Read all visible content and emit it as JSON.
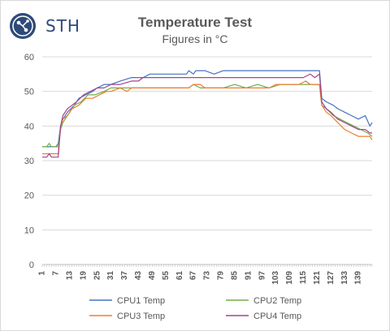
{
  "brand": {
    "logo_text": "STH"
  },
  "chart_data": {
    "type": "line",
    "title": "Temperature Test",
    "subtitle": "Figures in °C",
    "xlabel": "",
    "ylabel": "",
    "ylim": [
      0,
      60
    ],
    "yticks": [
      0,
      10,
      20,
      30,
      40,
      50,
      60
    ],
    "x_tick_labels": [
      1,
      7,
      13,
      19,
      25,
      31,
      37,
      43,
      49,
      55,
      61,
      67,
      73,
      79,
      85,
      91,
      97,
      103,
      109,
      115,
      121,
      127,
      133,
      139
    ],
    "x_range": [
      1,
      145
    ],
    "grid": "horizontal",
    "legend_position": "bottom",
    "series": [
      {
        "name": "CPU1 Temp",
        "color": "#4472c4",
        "points": [
          [
            1,
            34
          ],
          [
            5,
            34
          ],
          [
            6,
            34
          ],
          [
            7,
            34
          ],
          [
            8,
            35
          ],
          [
            9,
            40
          ],
          [
            10,
            42
          ],
          [
            12,
            44
          ],
          [
            15,
            46
          ],
          [
            17,
            48
          ],
          [
            20,
            49
          ],
          [
            23,
            50
          ],
          [
            25,
            51
          ],
          [
            28,
            52
          ],
          [
            31,
            52
          ],
          [
            35,
            53
          ],
          [
            40,
            54
          ],
          [
            45,
            54
          ],
          [
            48,
            55
          ],
          [
            55,
            55
          ],
          [
            60,
            55
          ],
          [
            64,
            55
          ],
          [
            65,
            56
          ],
          [
            67,
            55
          ],
          [
            68,
            56
          ],
          [
            72,
            56
          ],
          [
            76,
            55
          ],
          [
            80,
            56
          ],
          [
            85,
            56
          ],
          [
            90,
            56
          ],
          [
            95,
            56
          ],
          [
            100,
            56
          ],
          [
            105,
            56
          ],
          [
            110,
            56
          ],
          [
            115,
            56
          ],
          [
            118,
            56
          ],
          [
            120,
            56
          ],
          [
            122,
            56
          ],
          [
            123,
            48
          ],
          [
            125,
            47
          ],
          [
            128,
            46
          ],
          [
            130,
            45
          ],
          [
            133,
            44
          ],
          [
            136,
            43
          ],
          [
            139,
            42
          ],
          [
            142,
            43
          ],
          [
            144,
            40
          ],
          [
            145,
            41
          ]
        ]
      },
      {
        "name": "CPU2 Temp",
        "color": "#70ad47",
        "points": [
          [
            1,
            34
          ],
          [
            3,
            34
          ],
          [
            4,
            35
          ],
          [
            5,
            34
          ],
          [
            7,
            34
          ],
          [
            8,
            34
          ],
          [
            9,
            39
          ],
          [
            10,
            41
          ],
          [
            12,
            43
          ],
          [
            15,
            46
          ],
          [
            18,
            47
          ],
          [
            21,
            49
          ],
          [
            24,
            49
          ],
          [
            28,
            50
          ],
          [
            31,
            51
          ],
          [
            35,
            51
          ],
          [
            40,
            51
          ],
          [
            45,
            51
          ],
          [
            50,
            51
          ],
          [
            55,
            51
          ],
          [
            60,
            51
          ],
          [
            65,
            51
          ],
          [
            67,
            52
          ],
          [
            70,
            51
          ],
          [
            75,
            51
          ],
          [
            80,
            51
          ],
          [
            85,
            52
          ],
          [
            90,
            51
          ],
          [
            95,
            52
          ],
          [
            100,
            51
          ],
          [
            105,
            52
          ],
          [
            110,
            52
          ],
          [
            115,
            52
          ],
          [
            120,
            52
          ],
          [
            122,
            52
          ],
          [
            123,
            46
          ],
          [
            125,
            45
          ],
          [
            128,
            43
          ],
          [
            131,
            42
          ],
          [
            134,
            41
          ],
          [
            137,
            40
          ],
          [
            140,
            39
          ],
          [
            143,
            38
          ],
          [
            145,
            37
          ]
        ]
      },
      {
        "name": "CPU3 Temp",
        "color": "#ed7d31",
        "points": [
          [
            1,
            32
          ],
          [
            4,
            32
          ],
          [
            5,
            32
          ],
          [
            7,
            32
          ],
          [
            8,
            32
          ],
          [
            9,
            40
          ],
          [
            10,
            42
          ],
          [
            12,
            43
          ],
          [
            14,
            45
          ],
          [
            17,
            46
          ],
          [
            20,
            48
          ],
          [
            23,
            48
          ],
          [
            26,
            49
          ],
          [
            29,
            50
          ],
          [
            31,
            50
          ],
          [
            35,
            51
          ],
          [
            38,
            50
          ],
          [
            40,
            51
          ],
          [
            45,
            51
          ],
          [
            50,
            51
          ],
          [
            55,
            51
          ],
          [
            60,
            51
          ],
          [
            65,
            51
          ],
          [
            67,
            52
          ],
          [
            70,
            52
          ],
          [
            72,
            51
          ],
          [
            75,
            51
          ],
          [
            80,
            51
          ],
          [
            85,
            51
          ],
          [
            90,
            51
          ],
          [
            95,
            51
          ],
          [
            100,
            51
          ],
          [
            103,
            52
          ],
          [
            106,
            52
          ],
          [
            110,
            52
          ],
          [
            113,
            52
          ],
          [
            116,
            53
          ],
          [
            118,
            52
          ],
          [
            120,
            52
          ],
          [
            122,
            52
          ],
          [
            123,
            46
          ],
          [
            125,
            44
          ],
          [
            127,
            43
          ],
          [
            130,
            41
          ],
          [
            133,
            39
          ],
          [
            136,
            38
          ],
          [
            139,
            37
          ],
          [
            142,
            37
          ],
          [
            144,
            37
          ],
          [
            145,
            36
          ]
        ]
      },
      {
        "name": "CPU4 Temp",
        "color": "#a5438f",
        "points": [
          [
            1,
            31
          ],
          [
            3,
            31
          ],
          [
            4,
            32
          ],
          [
            5,
            31
          ],
          [
            7,
            31
          ],
          [
            8,
            31
          ],
          [
            9,
            40
          ],
          [
            10,
            43
          ],
          [
            12,
            45
          ],
          [
            14,
            46
          ],
          [
            16,
            47
          ],
          [
            19,
            49
          ],
          [
            22,
            50
          ],
          [
            25,
            51
          ],
          [
            28,
            51
          ],
          [
            31,
            52
          ],
          [
            35,
            52
          ],
          [
            40,
            53
          ],
          [
            43,
            53
          ],
          [
            45,
            54
          ],
          [
            50,
            54
          ],
          [
            55,
            54
          ],
          [
            60,
            54
          ],
          [
            65,
            54
          ],
          [
            70,
            54
          ],
          [
            75,
            54
          ],
          [
            80,
            54
          ],
          [
            85,
            54
          ],
          [
            90,
            54
          ],
          [
            95,
            54
          ],
          [
            100,
            54
          ],
          [
            105,
            54
          ],
          [
            110,
            54
          ],
          [
            115,
            54
          ],
          [
            118,
            55
          ],
          [
            120,
            54
          ],
          [
            122,
            55
          ],
          [
            123,
            47
          ],
          [
            125,
            45
          ],
          [
            127,
            44
          ],
          [
            130,
            42
          ],
          [
            133,
            41
          ],
          [
            136,
            40
          ],
          [
            139,
            39
          ],
          [
            142,
            39
          ],
          [
            144,
            38
          ],
          [
            145,
            38
          ]
        ]
      }
    ]
  }
}
